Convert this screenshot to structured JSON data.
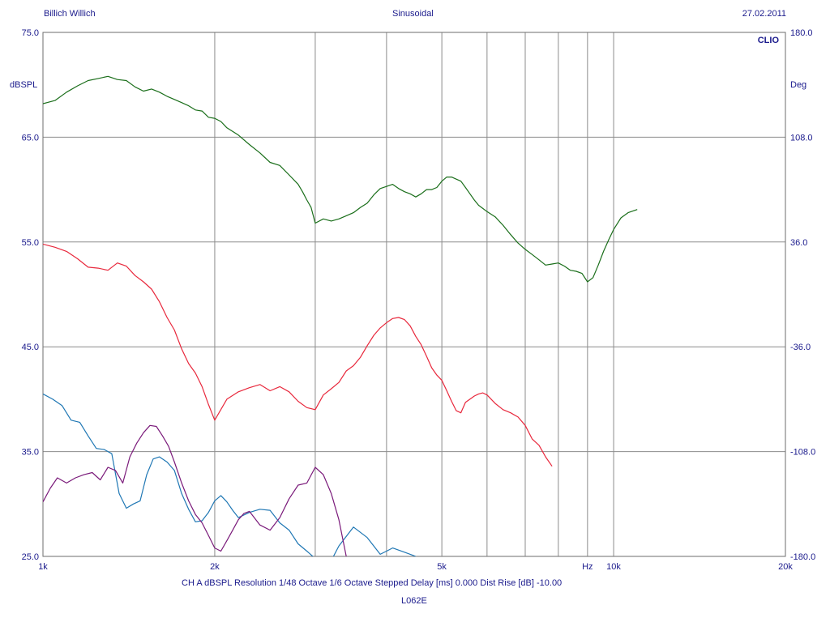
{
  "header": {
    "left": "Billich Willich",
    "center": "Sinusoidal",
    "right": "27.02.2011"
  },
  "brand": "CLIO",
  "footer": {
    "line1": "CH A   dBSPL   Resolution 1/48 Octave   1/6 Octave   Stepped     Delay [ms] 0.000    Dist Rise [dB] -10.00",
    "line2": "L062E"
  },
  "chart_data": {
    "type": "line",
    "xscale": "log",
    "xlim": [
      1000,
      20000
    ],
    "ylim": [
      25,
      75
    ],
    "y2lim": [
      -180,
      180
    ],
    "ylabel": "dBSPL",
    "y2label": "Deg",
    "xlabel_unit": "Hz",
    "grid": true,
    "x_ticks": [
      {
        "v": 1000,
        "label": "1k"
      },
      {
        "v": 2000,
        "label": "2k"
      },
      {
        "v": 3000,
        "label": ""
      },
      {
        "v": 4000,
        "label": ""
      },
      {
        "v": 5000,
        "label": "5k"
      },
      {
        "v": 6000,
        "label": ""
      },
      {
        "v": 7000,
        "label": ""
      },
      {
        "v": 8000,
        "label": ""
      },
      {
        "v": 9000,
        "label": "Hz"
      },
      {
        "v": 10000,
        "label": "10k"
      },
      {
        "v": 20000,
        "label": "20k"
      }
    ],
    "y_ticks": [
      "25.0",
      "35.0",
      "45.0",
      "55.0",
      "65.0",
      "75.0"
    ],
    "y2_ticks": [
      "-180.0",
      "-108.0",
      "-36.0",
      "36.0",
      "108.0",
      "180.0"
    ],
    "series": [
      {
        "color": "#1a6e1a",
        "x": [
          1000,
          1050,
          1100,
          1150,
          1200,
          1250,
          1300,
          1350,
          1400,
          1450,
          1500,
          1550,
          1600,
          1650,
          1700,
          1750,
          1800,
          1850,
          1900,
          1950,
          2000,
          2050,
          2100,
          2200,
          2300,
          2400,
          2500,
          2600,
          2700,
          2800,
          2850,
          2900,
          2950,
          3000,
          3100,
          3200,
          3300,
          3400,
          3500,
          3600,
          3700,
          3800,
          3900,
          4000,
          4100,
          4200,
          4300,
          4400,
          4500,
          4600,
          4700,
          4800,
          4900,
          5000,
          5100,
          5200,
          5300,
          5400,
          5500,
          5600,
          5700,
          5800,
          5900,
          6000,
          6200,
          6400,
          6600,
          6800,
          7000,
          7200,
          7400,
          7600,
          7800,
          8000,
          8200,
          8400,
          8600,
          8800,
          9000,
          9200,
          9400,
          9600,
          9800,
          10000,
          10300,
          10600,
          11000
        ],
        "y": [
          68.2,
          68.5,
          69.3,
          69.9,
          70.4,
          70.6,
          70.8,
          70.5,
          70.4,
          69.8,
          69.4,
          69.6,
          69.3,
          68.9,
          68.6,
          68.3,
          68.0,
          67.6,
          67.5,
          66.9,
          66.8,
          66.5,
          65.9,
          65.2,
          64.3,
          63.5,
          62.6,
          62.3,
          61.4,
          60.5,
          59.8,
          59.0,
          58.3,
          56.8,
          57.2,
          57.0,
          57.2,
          57.5,
          57.8,
          58.3,
          58.7,
          59.5,
          60.1,
          60.3,
          60.5,
          60.1,
          59.8,
          59.6,
          59.3,
          59.6,
          60.0,
          60.0,
          60.2,
          60.8,
          61.2,
          61.2,
          61.0,
          60.8,
          60.2,
          59.6,
          59.0,
          58.5,
          58.2,
          57.9,
          57.4,
          56.6,
          55.7,
          54.9,
          54.3,
          53.8,
          53.3,
          52.8,
          52.9,
          53.0,
          52.7,
          52.3,
          52.2,
          52.0,
          51.2,
          51.6,
          52.8,
          54.1,
          55.2,
          56.2,
          57.3,
          57.8,
          58.1
        ]
      },
      {
        "color": "#e8283c",
        "x": [
          1000,
          1050,
          1100,
          1150,
          1200,
          1250,
          1300,
          1350,
          1400,
          1450,
          1500,
          1550,
          1600,
          1650,
          1700,
          1750,
          1800,
          1850,
          1900,
          1950,
          2000,
          2100,
          2200,
          2300,
          2400,
          2500,
          2600,
          2700,
          2800,
          2900,
          3000,
          3100,
          3200,
          3300,
          3400,
          3500,
          3600,
          3700,
          3800,
          3900,
          4000,
          4100,
          4200,
          4300,
          4400,
          4500,
          4600,
          4700,
          4800,
          4900,
          5000,
          5100,
          5200,
          5300,
          5400,
          5500,
          5600,
          5700,
          5800,
          5900,
          6000,
          6200,
          6400,
          6600,
          6800,
          7000,
          7200,
          7400,
          7600,
          7800
        ],
        "y": [
          54.8,
          54.5,
          54.1,
          53.4,
          52.6,
          52.5,
          52.3,
          53.0,
          52.7,
          51.8,
          51.2,
          50.5,
          49.3,
          47.8,
          46.6,
          44.8,
          43.4,
          42.5,
          41.2,
          39.5,
          38.0,
          40.0,
          40.7,
          41.1,
          41.4,
          40.8,
          41.2,
          40.7,
          39.8,
          39.2,
          39.0,
          40.4,
          41.0,
          41.6,
          42.7,
          43.2,
          44.0,
          45.1,
          46.1,
          46.8,
          47.3,
          47.7,
          47.8,
          47.6,
          47.0,
          46.0,
          45.2,
          44.1,
          43.0,
          42.3,
          41.8,
          40.8,
          39.8,
          38.9,
          38.7,
          39.7,
          40.0,
          40.3,
          40.5,
          40.6,
          40.4,
          39.6,
          39.0,
          38.7,
          38.3,
          37.5,
          36.2,
          35.6,
          34.5,
          33.6
        ]
      },
      {
        "color": "#1f77b4",
        "x": [
          1000,
          1040,
          1080,
          1120,
          1160,
          1200,
          1240,
          1280,
          1320,
          1360,
          1400,
          1440,
          1480,
          1520,
          1560,
          1600,
          1650,
          1700,
          1750,
          1800,
          1850,
          1900,
          1950,
          2000,
          2050,
          2100,
          2150,
          2200,
          2300,
          2400,
          2500,
          2600,
          2700,
          2800,
          2900,
          3000,
          3100,
          3200,
          3300,
          3500,
          3700,
          3900,
          4000,
          4100,
          4300,
          4500
        ],
        "y": [
          40.5,
          40.0,
          39.4,
          38.0,
          37.8,
          36.5,
          35.3,
          35.2,
          34.8,
          31.0,
          29.6,
          30.0,
          30.3,
          32.8,
          34.3,
          34.5,
          34.0,
          33.2,
          31.0,
          29.5,
          28.3,
          28.4,
          29.2,
          30.3,
          30.8,
          30.2,
          29.4,
          28.7,
          29.2,
          29.5,
          29.4,
          28.2,
          27.5,
          26.2,
          25.5,
          24.8,
          24.3,
          24.6,
          26.0,
          27.8,
          26.8,
          25.2,
          25.5,
          25.8,
          25.4,
          25.0
        ]
      },
      {
        "color": "#7a1a7a",
        "x": [
          1000,
          1030,
          1060,
          1100,
          1140,
          1180,
          1220,
          1260,
          1300,
          1340,
          1380,
          1420,
          1460,
          1500,
          1540,
          1580,
          1620,
          1660,
          1700,
          1750,
          1800,
          1850,
          1900,
          1950,
          2000,
          2050,
          2100,
          2150,
          2200,
          2250,
          2300,
          2400,
          2500,
          2600,
          2700,
          2800,
          2900,
          3000,
          3100,
          3200,
          3300,
          3400
        ],
        "y": [
          30.2,
          31.5,
          32.5,
          32.0,
          32.5,
          32.8,
          33.0,
          32.3,
          33.5,
          33.2,
          32.0,
          34.5,
          35.8,
          36.8,
          37.5,
          37.4,
          36.5,
          35.5,
          34.0,
          32.0,
          30.3,
          29.0,
          28.2,
          27.0,
          25.8,
          25.5,
          26.5,
          27.5,
          28.5,
          29.1,
          29.3,
          28.0,
          27.5,
          28.7,
          30.5,
          31.8,
          32.0,
          33.5,
          32.8,
          31.0,
          28.5,
          25.0
        ]
      }
    ]
  }
}
